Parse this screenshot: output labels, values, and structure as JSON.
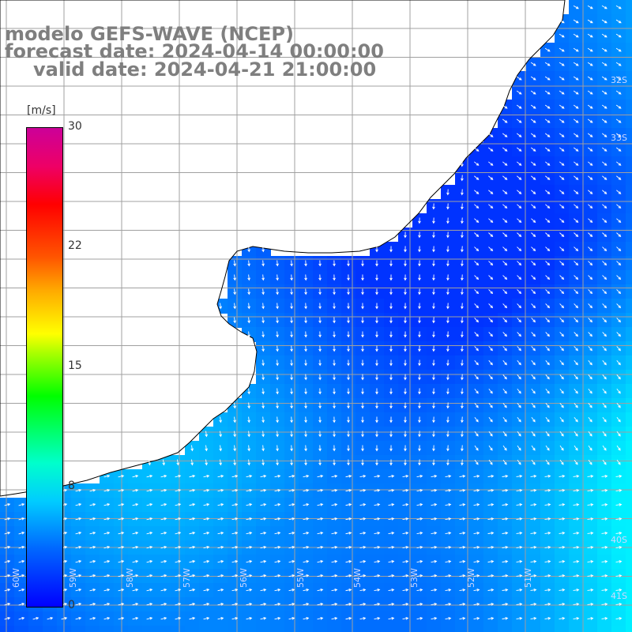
{
  "header": {
    "line1": "modelo GEFS-WAVE (NCEP)",
    "line2": "forecast date: 2024-04-14 00:00:00",
    "line3": "valid date: 2024-04-21 21:00:00"
  },
  "colorbar": {
    "unit": "[m/s]",
    "ticks": [
      "30",
      "22",
      "15",
      "8",
      "0"
    ],
    "range": [
      0,
      30
    ]
  },
  "map": {
    "lon_labels": [
      "60W",
      "59W",
      "58W",
      "57W",
      "56W",
      "55W",
      "54W",
      "53W",
      "52W",
      "51W"
    ],
    "lat_labels": [
      "32S",
      "33S",
      "40S",
      "41S"
    ],
    "colors": {
      "land": "#ffffff",
      "grid": "#a0a0a0",
      "coast": "#000000",
      "arrow": "#ffffff"
    }
  }
}
